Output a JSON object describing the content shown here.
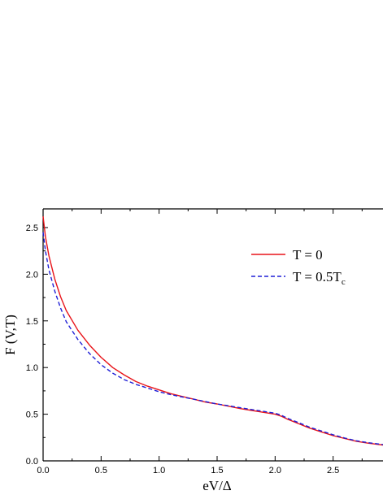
{
  "chart_data": {
    "type": "line",
    "title": "",
    "xlabel": "eV/Δ",
    "ylabel": "F (V,T)",
    "xlim": [
      0.0,
      2.93
    ],
    "ylim": [
      0.0,
      2.7
    ],
    "xticks": [
      "0.0",
      "0.5",
      "1.0",
      "1.5",
      "2.0",
      "2.5"
    ],
    "yticks": [
      "0.0",
      "0.5",
      "1.0",
      "1.5",
      "2.0",
      "2.5"
    ],
    "grid": false,
    "legend": "top-right",
    "series": [
      {
        "name": "T = 0",
        "color": "#e8141a",
        "style": "solid",
        "x": [
          0.0,
          0.02,
          0.05,
          0.1,
          0.15,
          0.2,
          0.3,
          0.4,
          0.5,
          0.6,
          0.7,
          0.8,
          0.9,
          1.0,
          1.1,
          1.2,
          1.3,
          1.4,
          1.5,
          1.6,
          1.7,
          1.8,
          1.9,
          2.0,
          2.05,
          2.1,
          2.2,
          2.3,
          2.4,
          2.5,
          2.6,
          2.7,
          2.8,
          2.93
        ],
        "y": [
          2.62,
          2.4,
          2.2,
          1.95,
          1.76,
          1.61,
          1.4,
          1.24,
          1.11,
          1.0,
          0.92,
          0.85,
          0.8,
          0.76,
          0.72,
          0.69,
          0.66,
          0.63,
          0.61,
          0.585,
          0.56,
          0.54,
          0.52,
          0.5,
          0.48,
          0.45,
          0.4,
          0.35,
          0.31,
          0.27,
          0.24,
          0.21,
          0.19,
          0.17
        ]
      },
      {
        "name": "T = 0.5T",
        "name_sub": "c",
        "color": "#1f1fd6",
        "style": "dashed",
        "x": [
          0.0,
          0.02,
          0.05,
          0.1,
          0.15,
          0.2,
          0.3,
          0.4,
          0.5,
          0.6,
          0.7,
          0.8,
          0.9,
          1.0,
          1.1,
          1.2,
          1.3,
          1.4,
          1.5,
          1.6,
          1.7,
          1.8,
          1.9,
          2.0,
          2.05,
          2.1,
          2.2,
          2.3,
          2.4,
          2.5,
          2.6,
          2.7,
          2.8,
          2.93
        ],
        "y": [
          2.45,
          2.25,
          2.05,
          1.82,
          1.64,
          1.49,
          1.3,
          1.15,
          1.03,
          0.94,
          0.87,
          0.82,
          0.78,
          0.74,
          0.71,
          0.685,
          0.66,
          0.635,
          0.61,
          0.59,
          0.57,
          0.55,
          0.53,
          0.51,
          0.49,
          0.46,
          0.41,
          0.36,
          0.32,
          0.28,
          0.245,
          0.215,
          0.195,
          0.175
        ]
      }
    ]
  }
}
